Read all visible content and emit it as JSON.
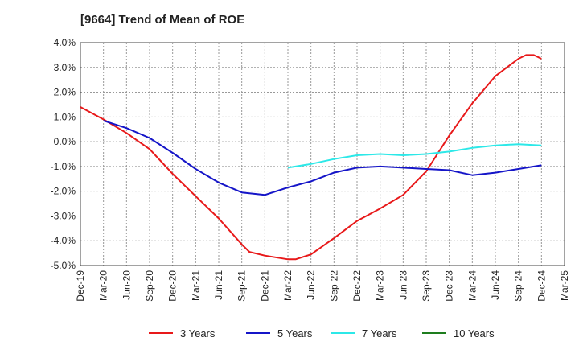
{
  "chart_data": {
    "type": "line",
    "title": "[9664]  Trend of Mean of ROE",
    "xlabel": "",
    "ylabel": "",
    "x_ticks": [
      "Dec-19",
      "Mar-20",
      "Jun-20",
      "Sep-20",
      "Dec-20",
      "Mar-21",
      "Jun-21",
      "Sep-21",
      "Dec-21",
      "Mar-22",
      "Jun-22",
      "Sep-22",
      "Dec-22",
      "Mar-23",
      "Jun-23",
      "Sep-23",
      "Dec-23",
      "Mar-24",
      "Jun-24",
      "Sep-24",
      "Dec-24",
      "Mar-25"
    ],
    "y_ticks": [
      "4.0%",
      "3.0%",
      "2.0%",
      "1.0%",
      "0.0%",
      "-1.0%",
      "-2.0%",
      "-3.0%",
      "-4.0%",
      "-5.0%"
    ],
    "ylim": [
      -5.0,
      4.0
    ],
    "grid": true,
    "legend_position": "bottom",
    "series": [
      {
        "name": "3 Years",
        "color": "#e8191a",
        "x": [
          "Dec-19",
          "Mar-20",
          "Jun-20",
          "Sep-20",
          "Dec-20",
          "Mar-21",
          "Jun-21",
          "Sep-21",
          "Oct-21",
          "Dec-21",
          "Mar-22",
          "Apr-22",
          "Jun-22",
          "Sep-22",
          "Dec-22",
          "Mar-23",
          "Jun-23",
          "Sep-23",
          "Dec-23",
          "Mar-24",
          "Jun-24",
          "Sep-24",
          "Oct-24",
          "Nov-24",
          "Dec-24"
        ],
        "values": [
          1.4,
          0.9,
          0.35,
          -0.3,
          -1.3,
          -2.2,
          -3.1,
          -4.15,
          -4.45,
          -4.6,
          -4.75,
          -4.75,
          -4.55,
          -3.9,
          -3.2,
          -2.7,
          -2.15,
          -1.2,
          0.25,
          1.55,
          2.65,
          3.35,
          3.5,
          3.5,
          3.35
        ]
      },
      {
        "name": "5 Years",
        "color": "#1515c8",
        "x": [
          "Mar-20",
          "Jun-20",
          "Sep-20",
          "Dec-20",
          "Mar-21",
          "Jun-21",
          "Sep-21",
          "Dec-21",
          "Mar-22",
          "Jun-22",
          "Sep-22",
          "Dec-22",
          "Mar-23",
          "Jun-23",
          "Sep-23",
          "Dec-23",
          "Mar-24",
          "Jun-24",
          "Sep-24",
          "Dec-24"
        ],
        "values": [
          0.85,
          0.55,
          0.15,
          -0.45,
          -1.1,
          -1.65,
          -2.05,
          -2.15,
          -1.85,
          -1.6,
          -1.25,
          -1.05,
          -1.0,
          -1.05,
          -1.1,
          -1.15,
          -1.35,
          -1.25,
          -1.1,
          -0.95
        ]
      },
      {
        "name": "7 Years",
        "color": "#2ce8e8",
        "x": [
          "Mar-22",
          "Jun-22",
          "Sep-22",
          "Dec-22",
          "Mar-23",
          "Jun-23",
          "Sep-23",
          "Dec-23",
          "Mar-24",
          "Jun-24",
          "Sep-24",
          "Dec-24"
        ],
        "values": [
          -1.05,
          -0.9,
          -0.7,
          -0.55,
          -0.5,
          -0.55,
          -0.5,
          -0.4,
          -0.25,
          -0.15,
          -0.1,
          -0.15
        ]
      },
      {
        "name": "10 Years",
        "color": "#1e7d1e",
        "x": [],
        "values": []
      }
    ]
  }
}
